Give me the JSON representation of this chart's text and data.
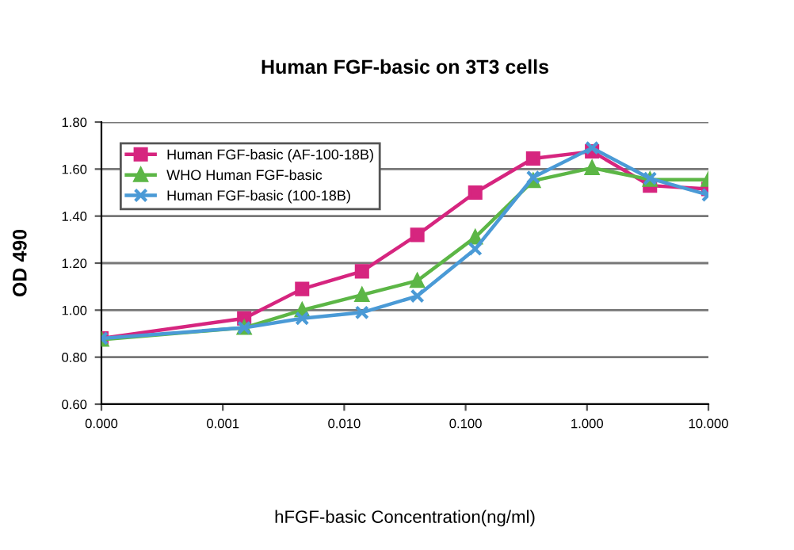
{
  "chart_data": {
    "type": "line",
    "title": "Human FGF-basic on 3T3 cells",
    "xlabel": "hFGF-basic Concentration(ng/ml)",
    "ylabel": "OD 490",
    "log": "x",
    "xlim": [
      0.0001,
      10
    ],
    "xticks": [
      {
        "value": 0.0001,
        "label": "0.000"
      },
      {
        "value": 0.001,
        "label": "0.001"
      },
      {
        "value": 0.01,
        "label": "0.010"
      },
      {
        "value": 0.1,
        "label": "0.100"
      },
      {
        "value": 1,
        "label": "1.000"
      },
      {
        "value": 10,
        "label": "10.000"
      }
    ],
    "ylim": [
      0.6,
      1.8
    ],
    "yticks": [
      {
        "value": 0.6,
        "label": "0.60"
      },
      {
        "value": 0.8,
        "label": "0.80"
      },
      {
        "value": 1.0,
        "label": "1.00"
      },
      {
        "value": 1.2,
        "label": "1.20"
      },
      {
        "value": 1.4,
        "label": "1.40"
      },
      {
        "value": 1.6,
        "label": "1.60"
      },
      {
        "value": 1.8,
        "label": "1.80"
      }
    ],
    "grid": "y",
    "legend": "top left",
    "line_style": "solid",
    "x": [
      0.0001,
      0.0015,
      0.0045,
      0.014,
      0.04,
      0.12,
      0.36,
      1.1,
      3.3,
      10
    ],
    "series": [
      {
        "name": "Human FGF-basic (AF-100-18B)",
        "color": "#d6257f",
        "marker": "square",
        "values": [
          0.88,
          0.965,
          1.09,
          1.165,
          1.32,
          1.5,
          1.645,
          1.675,
          1.53,
          1.515
        ]
      },
      {
        "name": "WHO Human FGF-basic",
        "color": "#5cb646",
        "marker": "triangle",
        "values": [
          0.875,
          0.925,
          1.0,
          1.065,
          1.125,
          1.31,
          1.55,
          1.605,
          1.555,
          1.555
        ]
      },
      {
        "name": "Human FGF-basic (100-18B)",
        "color": "#4a9ad6",
        "marker": "cross",
        "values": [
          0.88,
          0.925,
          0.965,
          0.99,
          1.06,
          1.26,
          1.565,
          1.69,
          1.56,
          1.49
        ]
      }
    ]
  }
}
